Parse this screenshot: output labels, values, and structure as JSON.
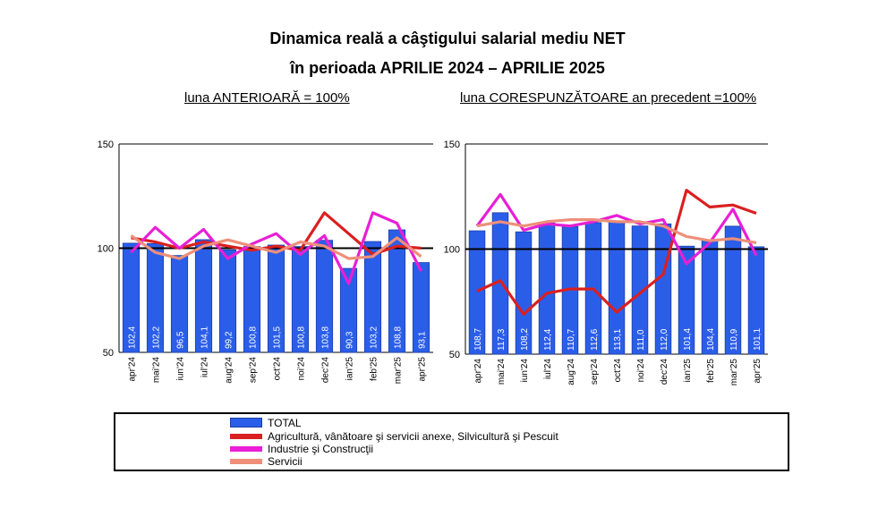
{
  "title_line1": "Dinamica reală a câştigului salarial mediu NET",
  "title_line2": "în perioada APRILIE 2024 – APRILIE 2025",
  "legend": {
    "total": "TOTAL",
    "agri": "Agricultură, vânătoare şi servicii anexe, Silvicultură şi Pescuit",
    "industrie": "Industrie şi Construcţii",
    "servicii": "Servicii"
  },
  "colors": {
    "bar": "#2b5ee8",
    "agri": "#d92020",
    "industrie": "#e81fd6",
    "servicii": "#ee8f7a"
  },
  "chart_data": [
    {
      "type": "bar",
      "title": "luna ANTERIOARĂ = 100%",
      "categories": [
        "apr'24",
        "mai'24",
        "iun'24",
        "iul'24",
        "aug'24",
        "sep'24",
        "oct'24",
        "noi'24",
        "dec'24",
        "ian'25",
        "feb'25",
        "mar'25",
        "apr'25"
      ],
      "ylim": [
        50,
        150
      ],
      "yticks": [
        50,
        100,
        150
      ],
      "reference": 100,
      "bar_labels": [
        "102,4",
        "102,2",
        "96,5",
        "104,1",
        "99,2",
        "100,8",
        "101,5",
        "100,8",
        "103,8",
        "90,3",
        "103,2",
        "108,8",
        "93,1"
      ],
      "series": [
        {
          "name": "TOTAL",
          "kind": "bar",
          "values": [
            102.4,
            102.2,
            96.5,
            104.1,
            99.2,
            100.8,
            101.5,
            100.8,
            103.8,
            90.3,
            103.2,
            108.8,
            93.1
          ]
        },
        {
          "name": "Agricultură, vânătoare şi servicii anexe, Silvicultură şi Pescuit",
          "kind": "line",
          "values": [
            105,
            103,
            100,
            103,
            101,
            99,
            101,
            99,
            117,
            107,
            97,
            101,
            100
          ]
        },
        {
          "name": "Industrie şi Construcţii",
          "kind": "line",
          "values": [
            98,
            110,
            100,
            109,
            95,
            102,
            107,
            97,
            106,
            83,
            117,
            112,
            89
          ]
        },
        {
          "name": "Servicii",
          "kind": "line",
          "values": [
            106,
            98,
            95,
            101,
            104,
            101,
            98,
            103,
            101,
            95,
            96,
            105,
            96
          ]
        }
      ]
    },
    {
      "type": "bar",
      "title": "luna CORESPUNZĂTOARE an precedent =100%",
      "categories": [
        "apr'24",
        "mai'24",
        "iun'24",
        "iul'24",
        "aug'24",
        "sep'24",
        "oct'24",
        "noi'24",
        "dec'24",
        "ian'25",
        "feb'25",
        "mar'25",
        "apr'25"
      ],
      "ylim": [
        50,
        150
      ],
      "yticks": [
        50,
        100,
        150
      ],
      "reference": 100,
      "bar_labels": [
        "108,7",
        "117,3",
        "108,2",
        "112,4",
        "110,7",
        "112,6",
        "113,1",
        "111,0",
        "112,0",
        "101,4",
        "104,4",
        "110,9",
        "101,1"
      ],
      "series": [
        {
          "name": "TOTAL",
          "kind": "bar",
          "values": [
            108.7,
            117.3,
            108.2,
            112.4,
            110.7,
            112.6,
            113.1,
            111.0,
            112.0,
            101.4,
            104.4,
            110.9,
            101.1
          ]
        },
        {
          "name": "Agricultură, vânătoare şi servicii anexe, Silvicultură şi Pescuit",
          "kind": "line",
          "values": [
            80,
            85,
            69,
            79,
            81,
            81,
            70,
            79,
            88,
            128,
            120,
            121,
            117
          ]
        },
        {
          "name": "Industrie şi Construcţii",
          "kind": "line",
          "values": [
            111,
            126,
            109,
            112,
            111,
            113,
            116,
            112,
            114,
            93,
            103,
            119,
            97
          ]
        },
        {
          "name": "Servicii",
          "kind": "line",
          "values": [
            111,
            113,
            111,
            113,
            114,
            114,
            113,
            113,
            111,
            106,
            104,
            105,
            103
          ]
        }
      ]
    }
  ]
}
